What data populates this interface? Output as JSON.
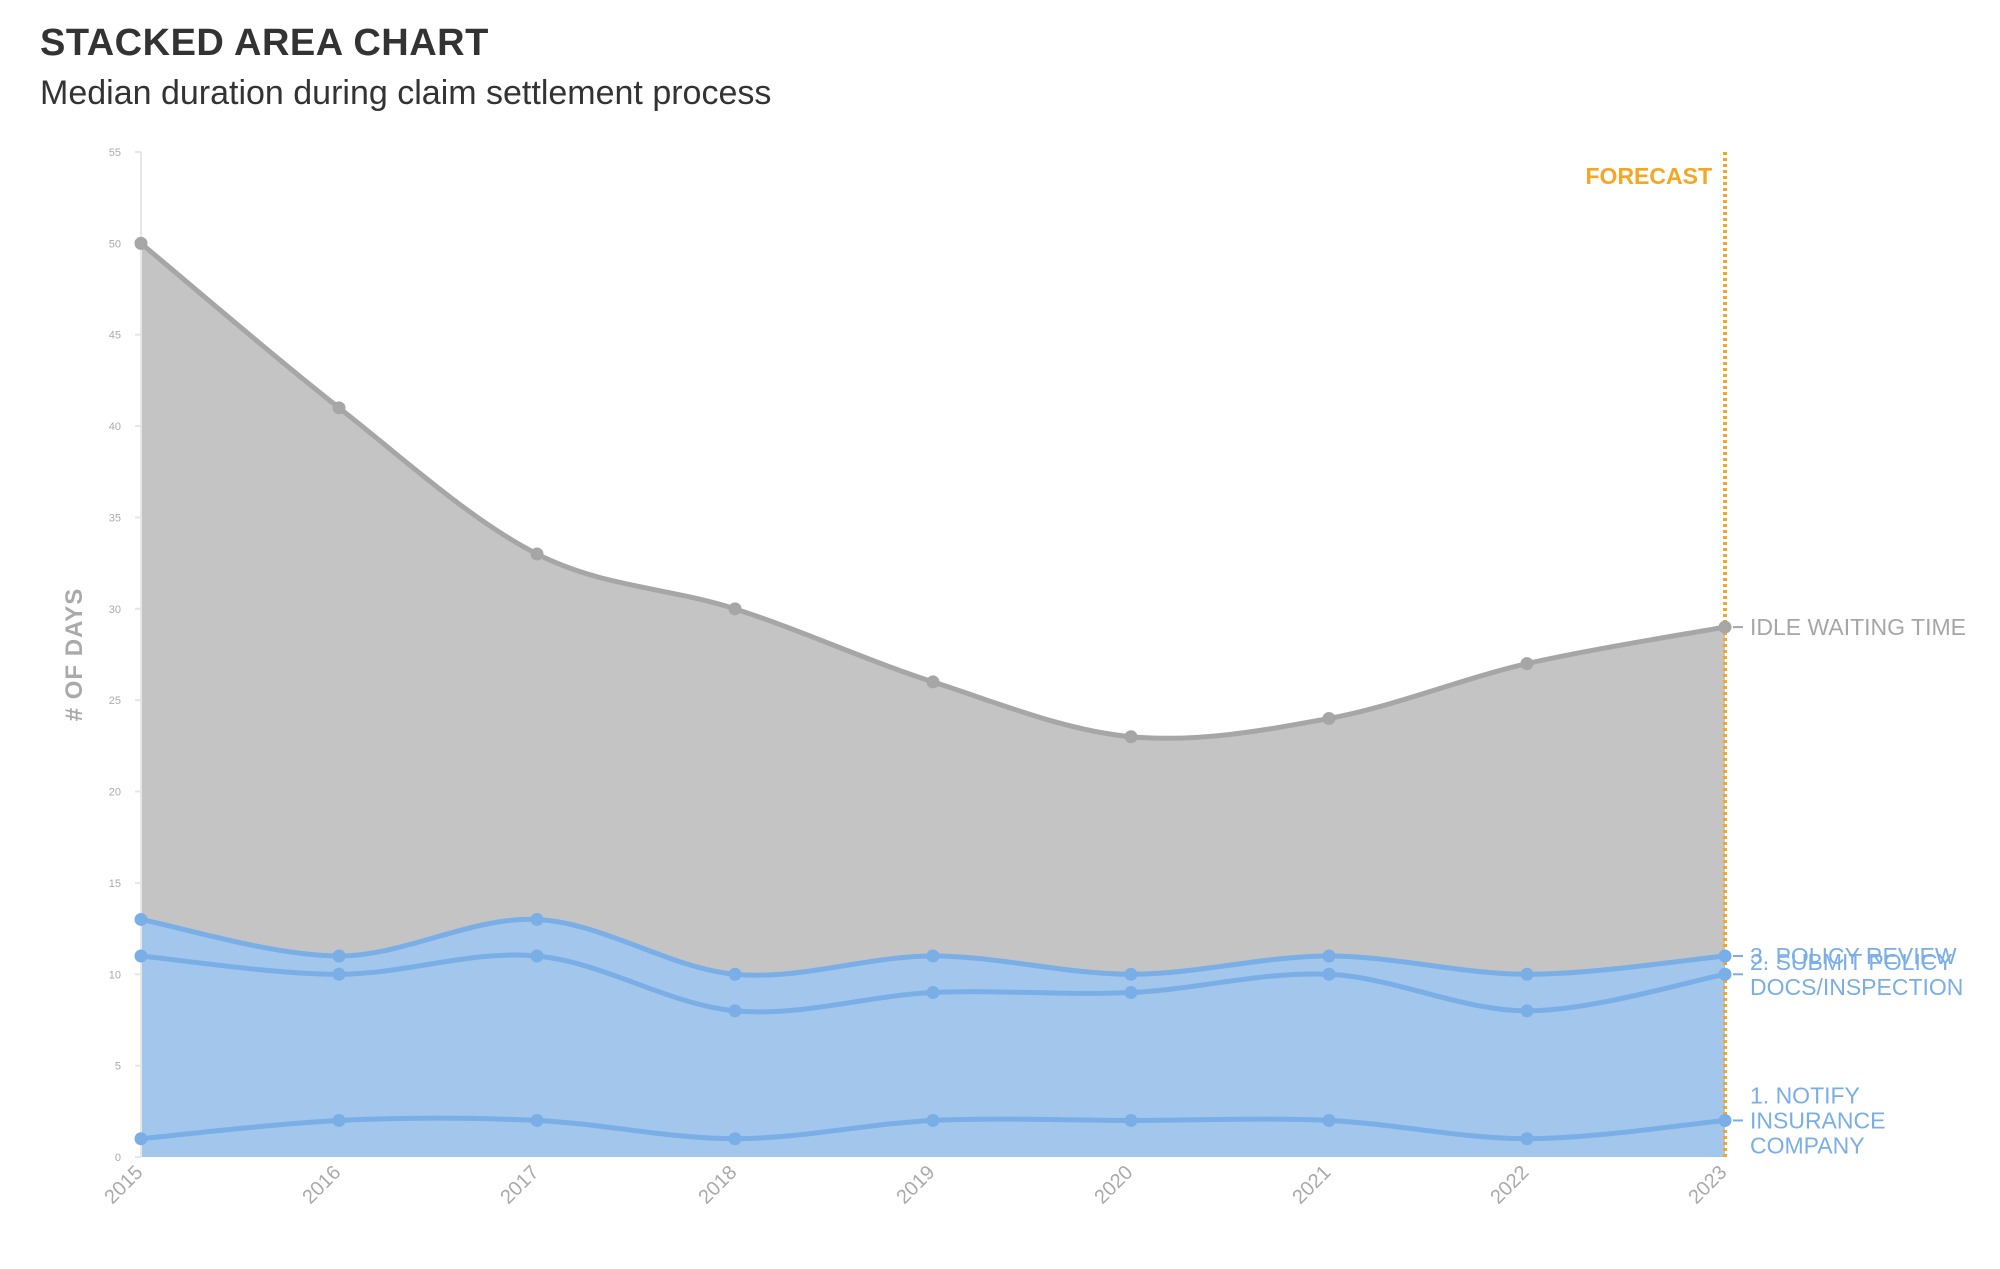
{
  "header": {
    "title": "STACKED AREA CHART",
    "subtitle": "Median duration during claim settlement process"
  },
  "chart_data": {
    "type": "area",
    "stacked": true,
    "title": "STACKED AREA CHART",
    "subtitle": "Median duration during claim settlement process",
    "xlabel": "",
    "ylabel": "# OF DAYS",
    "x": [
      "2015",
      "2016",
      "2017",
      "2018",
      "2019",
      "2020",
      "2021",
      "2022",
      "2023"
    ],
    "ylim": [
      0,
      55
    ],
    "yticks": [
      0,
      5,
      10,
      15,
      20,
      25,
      30,
      35,
      40,
      45,
      50,
      55
    ],
    "grid": false,
    "forecast_label": "FORECAST",
    "forecast_at": "2023",
    "series": [
      {
        "name": "1. NOTIFY INSURANCE COMPANY",
        "label_lines": [
          "1. NOTIFY",
          "INSURANCE",
          "COMPANY"
        ],
        "values": [
          1,
          2,
          2,
          1,
          2,
          2,
          2,
          1,
          2
        ],
        "color": "#7aaee6"
      },
      {
        "name": "2. SUBMIT POLICY DOCS/INSPECTION",
        "label_lines": [
          "2. SUBMIT POLICY",
          "DOCS/INSPECTION"
        ],
        "values": [
          10,
          8,
          9,
          7,
          7,
          7,
          8,
          7,
          8
        ],
        "color": "#7aaee6"
      },
      {
        "name": "3. POLICY REVIEW",
        "label_lines": [
          "3. POLICY REVIEW"
        ],
        "values": [
          2,
          1,
          2,
          2,
          2,
          1,
          1,
          2,
          1
        ],
        "color": "#7aaee6"
      },
      {
        "name": "IDLE WAITING TIME",
        "label_lines": [
          "IDLE WAITING TIME"
        ],
        "values": [
          37,
          30,
          20,
          20,
          15,
          13,
          13,
          17,
          18
        ],
        "color": "#a6a6a6"
      }
    ],
    "colors": {
      "blue_fill": "#a3c6ec",
      "blue_line": "#7aaee6",
      "gray_fill": "#c4c4c4",
      "gray_line": "#a6a6a6",
      "forecast": "#f5a623",
      "axis": "#e6e6e6"
    }
  }
}
